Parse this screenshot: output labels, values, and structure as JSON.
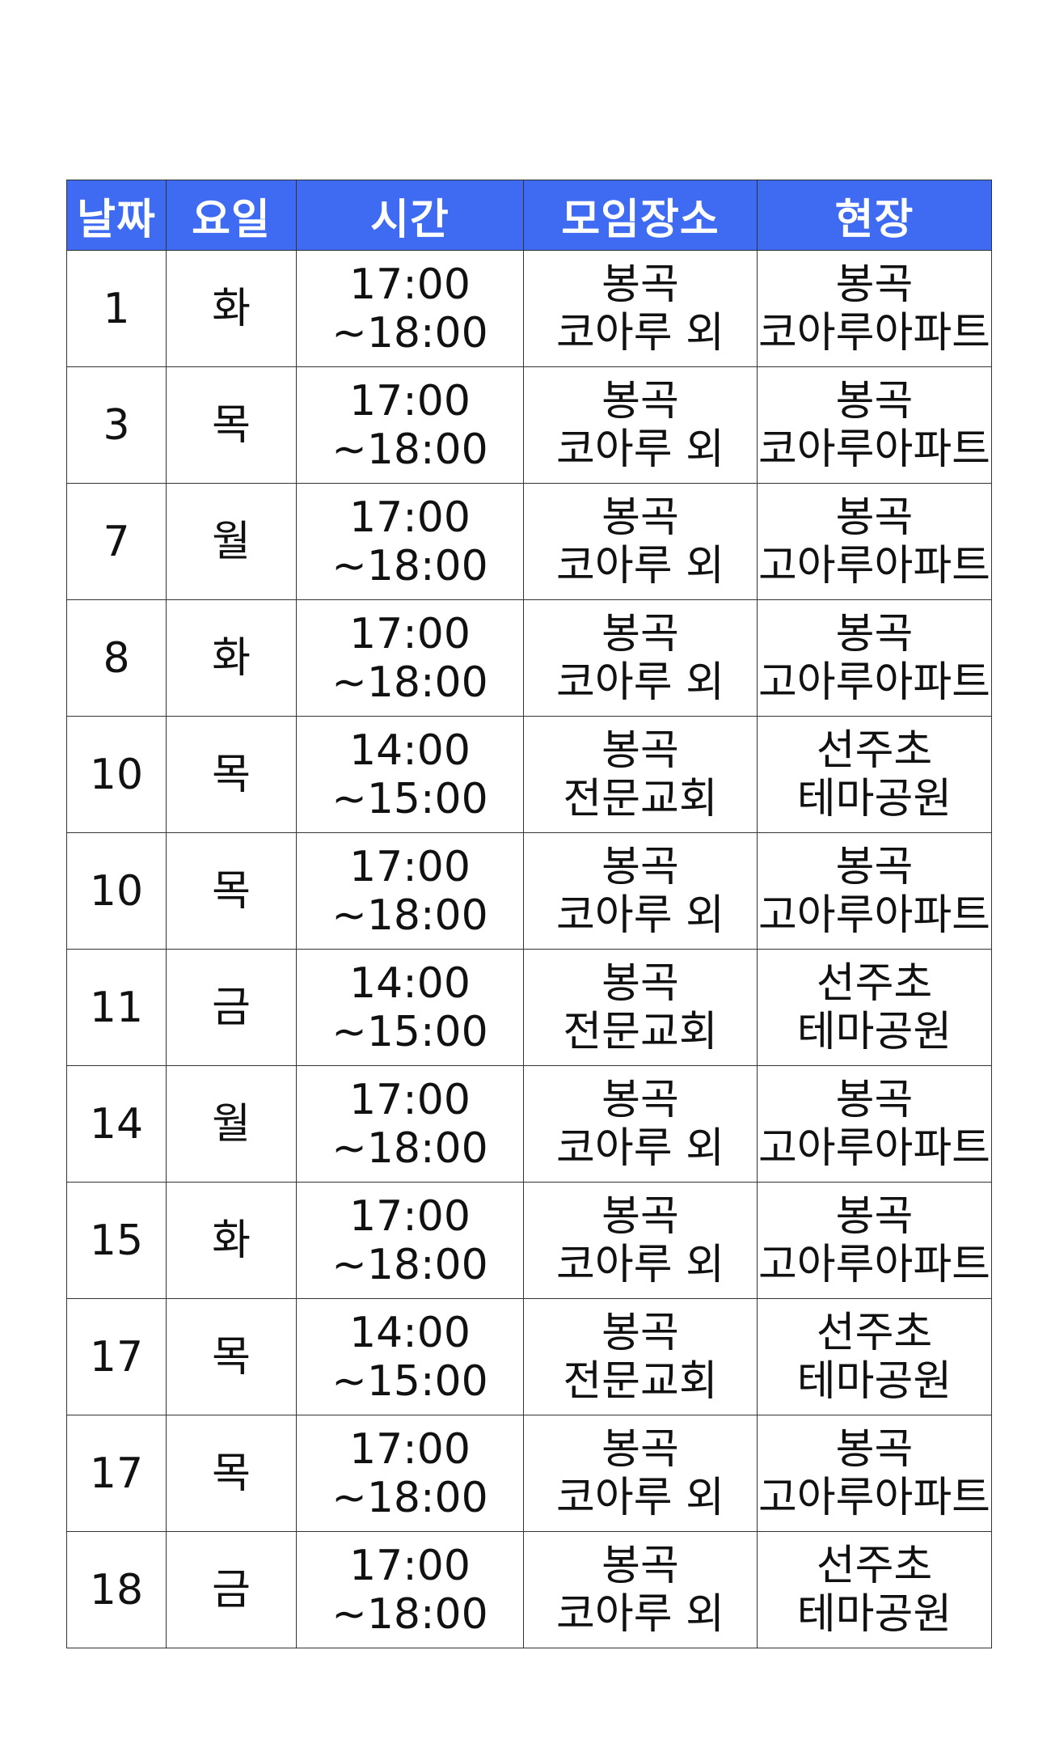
{
  "colors": {
    "header_bg": "#3E6BF2",
    "header_text": "#ffffff",
    "border": "#333333",
    "text": "#111111"
  },
  "table": {
    "headers": [
      "날짜",
      "요일",
      "시간",
      "모임장소",
      "현장"
    ],
    "rows": [
      {
        "date": "1",
        "day": "화",
        "time_start": "17:00",
        "time_end": "~18:00",
        "place_1": "봉곡",
        "place_2": "코아루 외",
        "site_1": "봉곡",
        "site_2": "코아루아파트"
      },
      {
        "date": "3",
        "day": "목",
        "time_start": "17:00",
        "time_end": "~18:00",
        "place_1": "봉곡",
        "place_2": "코아루 외",
        "site_1": "봉곡",
        "site_2": "코아루아파트"
      },
      {
        "date": "7",
        "day": "월",
        "time_start": "17:00",
        "time_end": "~18:00",
        "place_1": "봉곡",
        "place_2": "코아루 외",
        "site_1": "봉곡",
        "site_2": "고아루아파트"
      },
      {
        "date": "8",
        "day": "화",
        "time_start": "17:00",
        "time_end": "~18:00",
        "place_1": "봉곡",
        "place_2": "코아루 외",
        "site_1": "봉곡",
        "site_2": "고아루아파트"
      },
      {
        "date": "10",
        "day": "목",
        "time_start": "14:00",
        "time_end": "~15:00",
        "place_1": "봉곡",
        "place_2": "전문교회",
        "site_1": "선주초",
        "site_2": "테마공원"
      },
      {
        "date": "10",
        "day": "목",
        "time_start": "17:00",
        "time_end": "~18:00",
        "place_1": "봉곡",
        "place_2": "코아루 외",
        "site_1": "봉곡",
        "site_2": "고아루아파트"
      },
      {
        "date": "11",
        "day": "금",
        "time_start": "14:00",
        "time_end": "~15:00",
        "place_1": "봉곡",
        "place_2": "전문교회",
        "site_1": "선주초",
        "site_2": "테마공원"
      },
      {
        "date": "14",
        "day": "월",
        "time_start": "17:00",
        "time_end": "~18:00",
        "place_1": "봉곡",
        "place_2": "코아루 외",
        "site_1": "봉곡",
        "site_2": "고아루아파트"
      },
      {
        "date": "15",
        "day": "화",
        "time_start": "17:00",
        "time_end": "~18:00",
        "place_1": "봉곡",
        "place_2": "코아루 외",
        "site_1": "봉곡",
        "site_2": "고아루아파트"
      },
      {
        "date": "17",
        "day": "목",
        "time_start": "14:00",
        "time_end": "~15:00",
        "place_1": "봉곡",
        "place_2": "전문교회",
        "site_1": "선주초",
        "site_2": "테마공원"
      },
      {
        "date": "17",
        "day": "목",
        "time_start": "17:00",
        "time_end": "~18:00",
        "place_1": "봉곡",
        "place_2": "코아루 외",
        "site_1": "봉곡",
        "site_2": "고아루아파트"
      },
      {
        "date": "18",
        "day": "금",
        "time_start": "17:00",
        "time_end": "~18:00",
        "place_1": "봉곡",
        "place_2": "코아루 외",
        "site_1": "선주초",
        "site_2": "테마공원"
      }
    ]
  }
}
